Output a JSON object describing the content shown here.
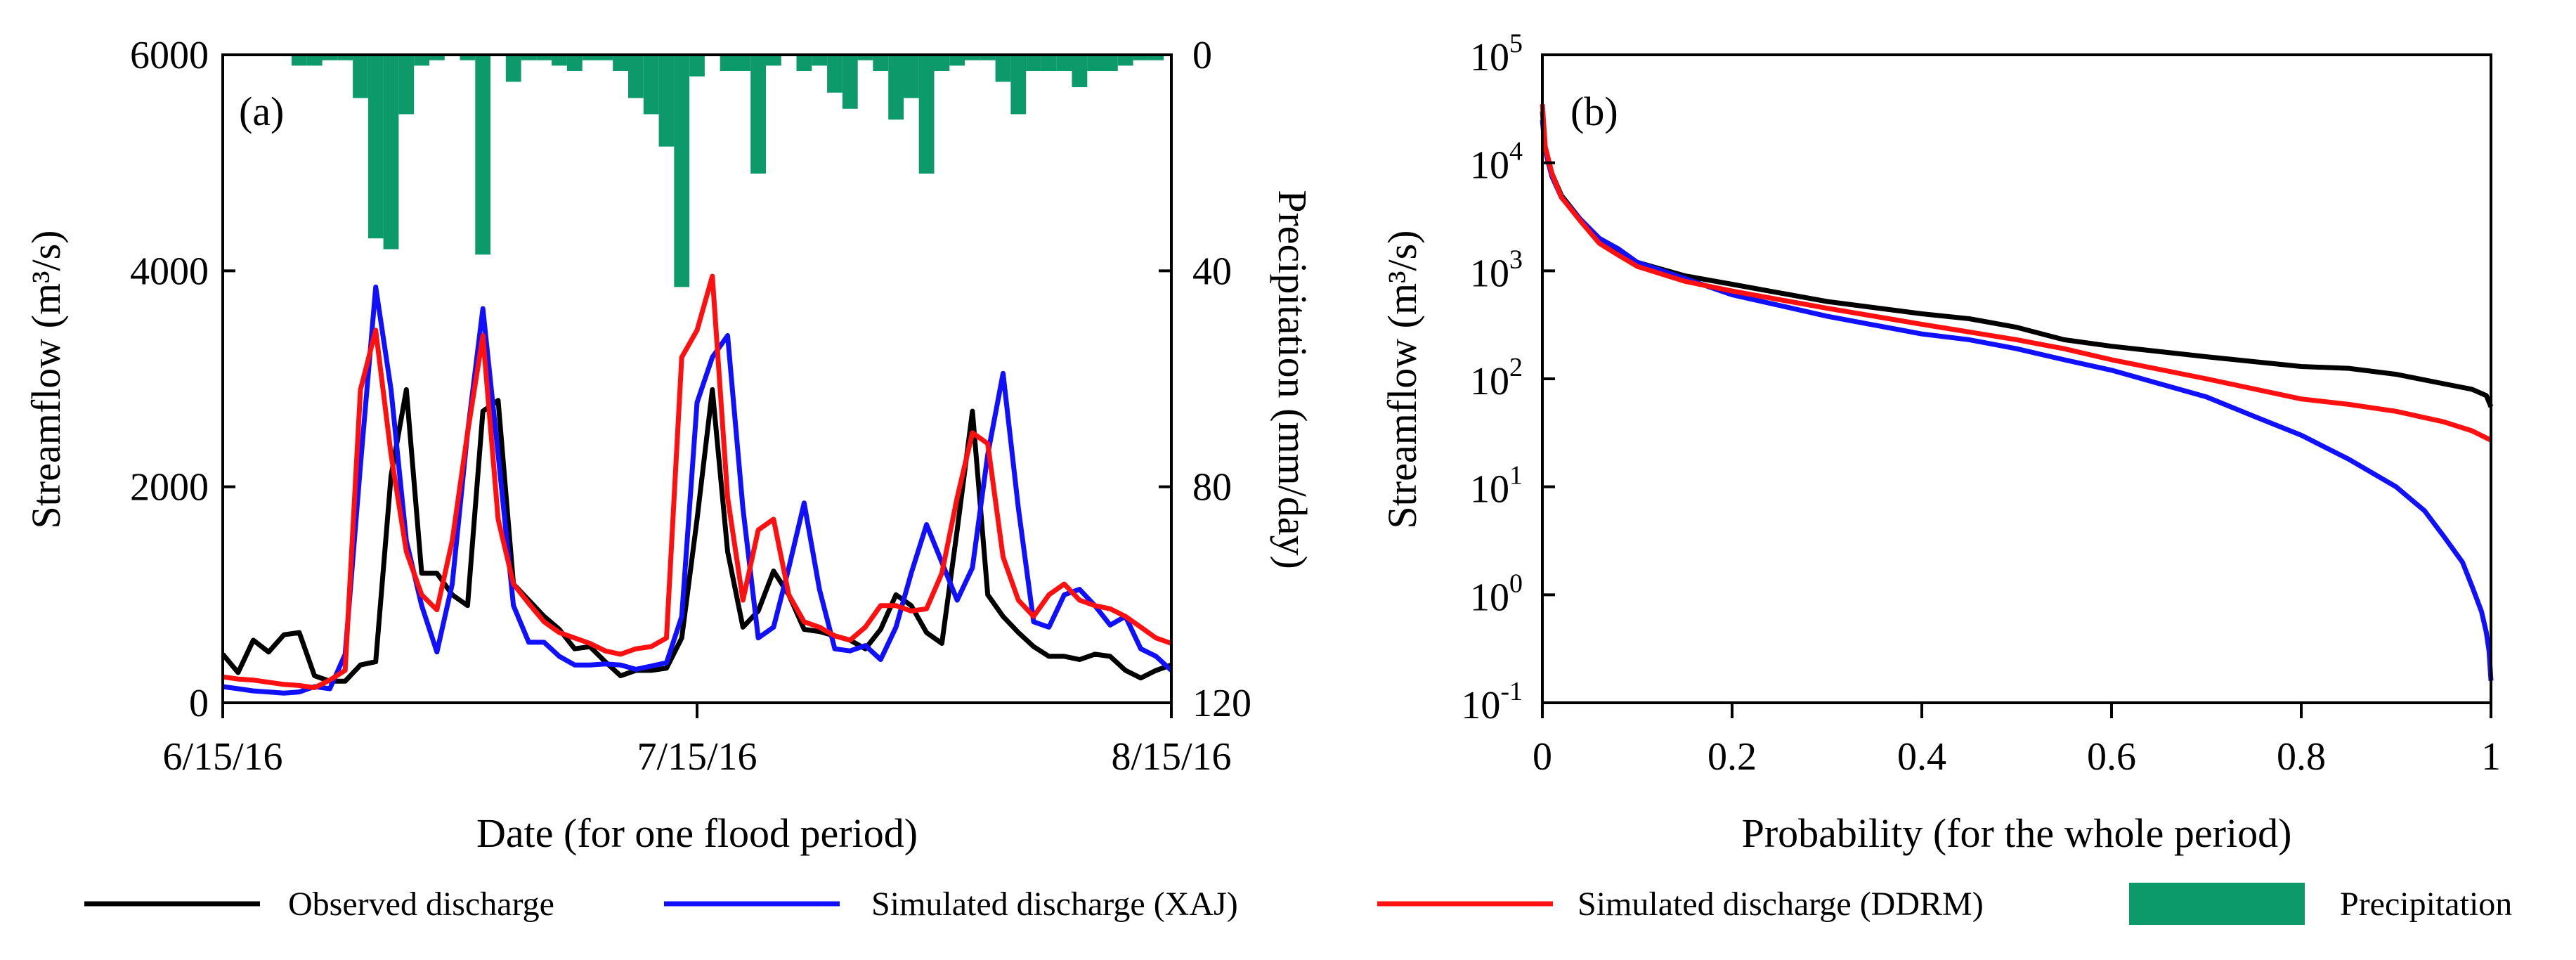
{
  "chart_data": [
    {
      "id": "a",
      "type": "line",
      "panel_label": "(a)",
      "xlabel": "Date (for one flood period)",
      "ylabel": "Streamflow (m³/s)",
      "y2label": "Precipitation (mm/day)",
      "xticks": [
        "6/15/16",
        "7/15/16",
        "8/15/16"
      ],
      "x_range_days": [
        0,
        62
      ],
      "ylim": [
        0,
        6000
      ],
      "yticks": [
        0,
        2000,
        4000,
        6000
      ],
      "y2lim": [
        0,
        120
      ],
      "y2ticks": [
        0,
        40,
        80,
        120
      ],
      "y2_inverted": true,
      "series": [
        {
          "name": "Observed discharge",
          "color": "#000000",
          "x": [
            0,
            1,
            2,
            3,
            4,
            5,
            6,
            7,
            8,
            9,
            10,
            11,
            12,
            13,
            14,
            15,
            16,
            17,
            18,
            19,
            20,
            21,
            22,
            23,
            24,
            25,
            26,
            27,
            28,
            29,
            30,
            31,
            32,
            33,
            34,
            35,
            36,
            37,
            38,
            39,
            40,
            41,
            42,
            43,
            44,
            45,
            46,
            47,
            48,
            49,
            50,
            51,
            52,
            53,
            54,
            55,
            56,
            57,
            58,
            59,
            60,
            61,
            62
          ],
          "y": [
            450,
            280,
            580,
            470,
            630,
            650,
            250,
            200,
            200,
            350,
            380,
            2100,
            2900,
            1200,
            1200,
            1000,
            900,
            2700,
            2800,
            1100,
            950,
            800,
            680,
            500,
            520,
            380,
            250,
            300,
            300,
            320,
            600,
            1700,
            2900,
            1400,
            700,
            850,
            1220,
            1000,
            680,
            660,
            620,
            580,
            500,
            680,
            1000,
            900,
            650,
            550,
            1600,
            2700,
            1000,
            800,
            650,
            520,
            430,
            430,
            400,
            450,
            430,
            300,
            230,
            300,
            350
          ]
        },
        {
          "name": "Simulated discharge (XAJ)",
          "color": "#1010ff",
          "x": [
            0,
            1,
            2,
            3,
            4,
            5,
            6,
            7,
            8,
            9,
            10,
            11,
            12,
            13,
            14,
            15,
            16,
            17,
            18,
            19,
            20,
            21,
            22,
            23,
            24,
            25,
            26,
            27,
            28,
            29,
            30,
            31,
            32,
            33,
            34,
            35,
            36,
            37,
            38,
            39,
            40,
            41,
            42,
            43,
            44,
            45,
            46,
            47,
            48,
            49,
            50,
            51,
            52,
            53,
            54,
            55,
            56,
            57,
            58,
            59,
            60,
            61,
            62
          ],
          "y": [
            150,
            130,
            110,
            100,
            90,
            100,
            150,
            130,
            450,
            2200,
            3850,
            2900,
            1500,
            900,
            470,
            1100,
            2500,
            3650,
            2300,
            900,
            560,
            560,
            430,
            350,
            350,
            360,
            350,
            310,
            340,
            370,
            800,
            2780,
            3200,
            3400,
            1800,
            600,
            700,
            1250,
            1850,
            1050,
            500,
            480,
            530,
            400,
            700,
            1200,
            1650,
            1300,
            950,
            1250,
            2300,
            3050,
            1800,
            750,
            700,
            1000,
            1050,
            900,
            720,
            800,
            500,
            430,
            300
          ]
        },
        {
          "name": "Simulated discharge (DDRM)",
          "color": "#ff1010",
          "x": [
            0,
            1,
            2,
            3,
            4,
            5,
            6,
            7,
            8,
            9,
            10,
            11,
            12,
            13,
            14,
            15,
            16,
            17,
            18,
            19,
            20,
            21,
            22,
            23,
            24,
            25,
            26,
            27,
            28,
            29,
            30,
            31,
            32,
            33,
            34,
            35,
            36,
            37,
            38,
            39,
            40,
            41,
            42,
            43,
            44,
            45,
            46,
            47,
            48,
            49,
            50,
            51,
            52,
            53,
            54,
            55,
            56,
            57,
            58,
            59,
            60,
            61,
            62
          ],
          "y": [
            240,
            220,
            210,
            190,
            170,
            160,
            140,
            210,
            300,
            2900,
            3450,
            2300,
            1400,
            1000,
            860,
            1500,
            2500,
            3400,
            1700,
            1100,
            920,
            750,
            650,
            600,
            550,
            480,
            450,
            500,
            520,
            600,
            3200,
            3450,
            3950,
            1900,
            950,
            1600,
            1700,
            1000,
            750,
            700,
            620,
            580,
            700,
            900,
            900,
            850,
            870,
            1200,
            1900,
            2500,
            2400,
            1350,
            950,
            800,
            1000,
            1100,
            950,
            900,
            870,
            800,
            700,
            600,
            550
          ]
        },
        {
          "name": "Precipitation",
          "color": "#0d9a6a",
          "type": "bar",
          "axis": "y2",
          "x": [
            5,
            6,
            7,
            8,
            9,
            10,
            11,
            12,
            13,
            14,
            15,
            16,
            17,
            18,
            19,
            20,
            21,
            22,
            23,
            24,
            25,
            26,
            27,
            28,
            29,
            30,
            31,
            32,
            33,
            34,
            35,
            36,
            37,
            38,
            39,
            40,
            41,
            42,
            43,
            44,
            45,
            46,
            47,
            48,
            49,
            50,
            51,
            52,
            53,
            54,
            55,
            56,
            57,
            58,
            59,
            60,
            61,
            62
          ],
          "y": [
            2,
            2,
            1,
            1,
            8,
            34,
            36,
            11,
            2,
            1,
            0,
            1,
            37,
            0,
            5,
            1,
            1,
            2,
            3,
            1,
            1,
            3,
            8,
            11,
            17,
            43,
            4,
            0,
            3,
            3,
            22,
            2,
            0,
            3,
            2,
            7,
            10,
            1,
            3,
            12,
            8,
            22,
            3,
            2,
            1,
            1,
            5,
            11,
            3,
            3,
            3,
            6,
            3,
            3,
            2,
            1,
            1,
            0
          ]
        }
      ]
    },
    {
      "id": "b",
      "type": "line",
      "panel_label": "(b)",
      "xlabel": "Probability (for the whole period)",
      "ylabel": "Streamflow (m³/s)",
      "yscale": "log",
      "xlim": [
        0,
        1
      ],
      "xticks": [
        "0",
        "0.2",
        "0.4",
        "0.6",
        "0.8",
        "1"
      ],
      "ylim": [
        0.1,
        100000
      ],
      "ytick_mantissa": "10",
      "ytick_exponents": [
        "-1",
        "0",
        "1",
        "2",
        "3",
        "4",
        "5"
      ],
      "series": [
        {
          "name": "Observed discharge",
          "color": "#000000",
          "x": [
            0,
            0.003,
            0.01,
            0.02,
            0.04,
            0.06,
            0.08,
            0.1,
            0.15,
            0.2,
            0.3,
            0.4,
            0.45,
            0.5,
            0.55,
            0.6,
            0.7,
            0.8,
            0.85,
            0.9,
            0.95,
            0.98,
            0.995,
            1.0
          ],
          "y": [
            30000,
            14000,
            8000,
            5000,
            3000,
            2000,
            1500,
            1200,
            900,
            750,
            520,
            400,
            360,
            300,
            230,
            200,
            160,
            130,
            125,
            110,
            90,
            80,
            70,
            55
          ]
        },
        {
          "name": "Simulated discharge (XAJ)",
          "color": "#1010ff",
          "x": [
            0,
            0.003,
            0.01,
            0.02,
            0.04,
            0.06,
            0.08,
            0.1,
            0.15,
            0.2,
            0.3,
            0.4,
            0.45,
            0.5,
            0.55,
            0.6,
            0.7,
            0.75,
            0.8,
            0.85,
            0.9,
            0.93,
            0.95,
            0.97,
            0.98,
            0.99,
            0.995,
            0.998,
            1.0
          ],
          "y": [
            25000,
            13000,
            7500,
            4800,
            3000,
            2000,
            1600,
            1200,
            850,
            600,
            380,
            260,
            230,
            190,
            150,
            120,
            68,
            45,
            30,
            18,
            10,
            6,
            3.5,
            2,
            1.2,
            0.7,
            0.45,
            0.3,
            0.16
          ]
        },
        {
          "name": "Simulated discharge (DDRM)",
          "color": "#ff1010",
          "x": [
            0,
            0.003,
            0.01,
            0.02,
            0.04,
            0.06,
            0.08,
            0.1,
            0.15,
            0.2,
            0.3,
            0.4,
            0.5,
            0.55,
            0.6,
            0.7,
            0.8,
            0.85,
            0.9,
            0.95,
            0.98,
            1.0
          ],
          "y": [
            35000,
            14000,
            8000,
            4800,
            2900,
            1800,
            1400,
            1100,
            800,
            650,
            450,
            320,
            230,
            190,
            150,
            100,
            65,
            58,
            50,
            40,
            33,
            27
          ]
        }
      ]
    }
  ],
  "legend": [
    {
      "label": "Observed discharge",
      "color": "#000000",
      "kind": "line"
    },
    {
      "label": "Simulated discharge (XAJ)",
      "color": "#1010ff",
      "kind": "line"
    },
    {
      "label": "Simulated discharge (DDRM)",
      "color": "#ff1010",
      "kind": "line"
    },
    {
      "label": "Precipitation",
      "color": "#0d9a6a",
      "kind": "patch"
    }
  ]
}
